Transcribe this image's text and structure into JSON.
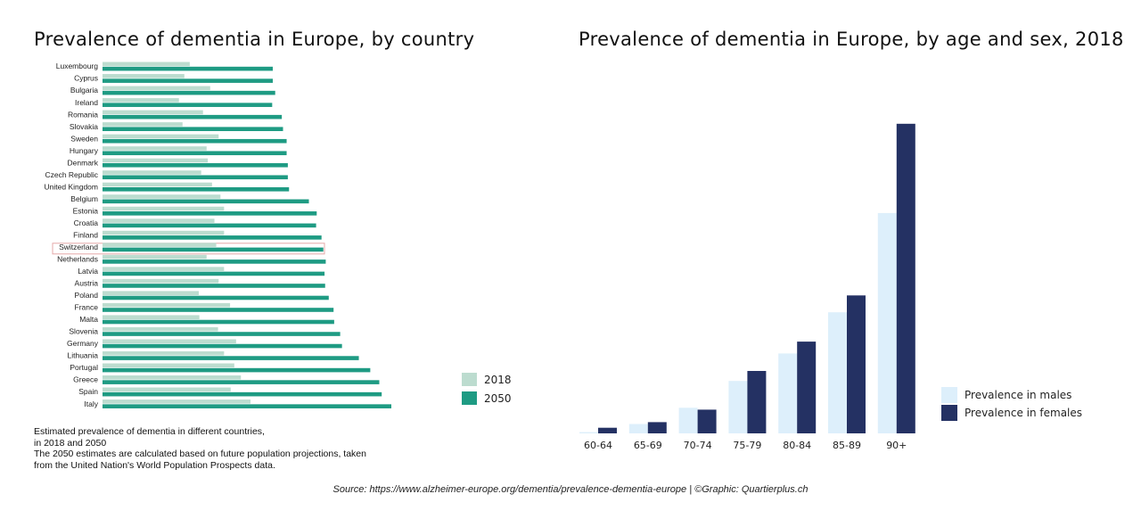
{
  "chart_data": [
    {
      "type": "bar",
      "orientation": "horizontal",
      "title": "Prevalence of dementia in Europe, by country",
      "categories": [
        "Luxembourg",
        "Cyprus",
        "Bulgaria",
        "Ireland",
        "Romania",
        "Slovakia",
        "Sweden",
        "Hungary",
        "Denmark",
        "Czech Republic",
        "United Kingdom",
        "Belgium",
        "Estonia",
        "Croatia",
        "Finland",
        "Switzerland",
        "Netherlands",
        "Latvia",
        "Austria",
        "Poland",
        "France",
        "Malta",
        "Slovenia",
        "Germany",
        "Lithuania",
        "Portugal",
        "Greece",
        "Spain",
        "Italy"
      ],
      "highlighted_category": "Switzerland",
      "series": [
        {
          "name": "2018",
          "color": "#bcdccf",
          "values": [
            1.45,
            1.36,
            1.79,
            1.27,
            1.67,
            1.33,
            1.93,
            1.73,
            1.75,
            1.64,
            1.82,
            1.96,
            2.02,
            1.86,
            2.02,
            1.89,
            1.73,
            2.02,
            1.93,
            1.6,
            2.12,
            1.61,
            1.92,
            2.22,
            2.02,
            2.19,
            2.3,
            2.13,
            2.46
          ]
        },
        {
          "name": "2050",
          "color": "#1e9b83",
          "values": [
            2.83,
            2.83,
            2.87,
            2.82,
            2.98,
            3.0,
            3.06,
            3.06,
            3.08,
            3.08,
            3.1,
            3.43,
            3.56,
            3.55,
            3.64,
            3.67,
            3.71,
            3.69,
            3.7,
            3.76,
            3.84,
            3.85,
            3.95,
            3.98,
            4.26,
            4.45,
            4.6,
            4.64,
            4.8
          ]
        }
      ],
      "xlim": [
        0,
        5
      ],
      "legend_position": "right"
    },
    {
      "type": "bar",
      "title": "Prevalence of dementia in Europe, by age and sex, 2018",
      "categories": [
        "60-64",
        "65-69",
        "70-74",
        "75-79",
        "80-84",
        "85-89",
        "90+"
      ],
      "series": [
        {
          "name": "Prevalence in males",
          "color": "#ddeffb",
          "values": [
            0.2,
            1.5,
            4.1,
            8.4,
            12.8,
            19.4,
            35.3
          ]
        },
        {
          "name": "Prevalence in females",
          "color": "#243163",
          "values": [
            0.9,
            1.8,
            3.8,
            10.0,
            14.7,
            22.1,
            49.6
          ]
        }
      ],
      "ylim": [
        0,
        50
      ],
      "legend_position": "right"
    }
  ],
  "notes": [
    "Estimated prevalence of dementia in different countries,",
    "in 2018 and 2050",
    "The 2050 estimates are calculated based on future population projections, taken",
    "from the United Nation's World Population Prospects data."
  ],
  "source": "Source: https://www.alzheimer-europe.org/dementia/prevalence-dementia-europe | ©Graphic: Quartierplus.ch"
}
